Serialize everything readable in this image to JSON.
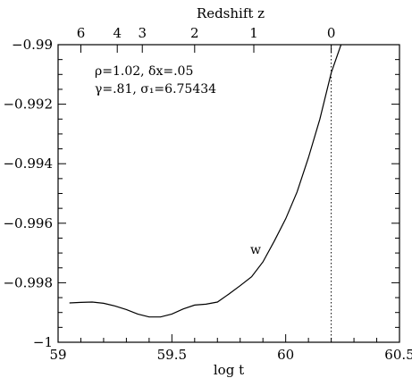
{
  "chart_data": {
    "type": "line",
    "title": "",
    "xlabel": "log t",
    "ylabel": "",
    "top_axis_label": "Redshift z",
    "xlim": [
      59,
      60.5
    ],
    "ylim": [
      -1,
      -0.99
    ],
    "x_ticks": [
      {
        "value": 59,
        "label": "59"
      },
      {
        "value": 59.5,
        "label": "59.5"
      },
      {
        "value": 60,
        "label": "60"
      },
      {
        "value": 60.5,
        "label": "60.5"
      }
    ],
    "y_ticks": [
      {
        "value": -1,
        "label": "−1"
      },
      {
        "value": -0.998,
        "label": "−0.998"
      },
      {
        "value": -0.996,
        "label": "−0.996"
      },
      {
        "value": -0.994,
        "label": "−0.994"
      },
      {
        "value": -0.992,
        "label": "−0.992"
      },
      {
        "value": -0.99,
        "label": "−0.99"
      }
    ],
    "top_ticks": [
      {
        "x": 59.1,
        "label": "6"
      },
      {
        "x": 59.26,
        "label": "4"
      },
      {
        "x": 59.37,
        "label": "3"
      },
      {
        "x": 59.6,
        "label": "2"
      },
      {
        "x": 59.86,
        "label": "1"
      },
      {
        "x": 60.2,
        "label": "0"
      }
    ],
    "vline": {
      "x": 60.2,
      "style": "dotted"
    },
    "annotations": [
      {
        "line1": "ρ=1.02,  δx=.05",
        "line2": "γ=.81,  σ₁=6.75434"
      }
    ],
    "series": [
      {
        "name": "w",
        "x": [
          59.05,
          59.1,
          59.15,
          59.2,
          59.25,
          59.3,
          59.35,
          59.4,
          59.45,
          59.5,
          59.55,
          59.6,
          59.65,
          59.7,
          59.75,
          59.8,
          59.85,
          59.9,
          59.95,
          60.0,
          60.05,
          60.1,
          60.15,
          60.2,
          60.25
        ],
        "y": [
          -0.99868,
          -0.99866,
          -0.99865,
          -0.99869,
          -0.99878,
          -0.9989,
          -0.99905,
          -0.99915,
          -0.99915,
          -0.99905,
          -0.99888,
          -0.99875,
          -0.99872,
          -0.99865,
          -0.99838,
          -0.9981,
          -0.9978,
          -0.9973,
          -0.9966,
          -0.99585,
          -0.99495,
          -0.9938,
          -0.9925,
          -0.99095,
          -0.98985
        ]
      }
    ]
  }
}
